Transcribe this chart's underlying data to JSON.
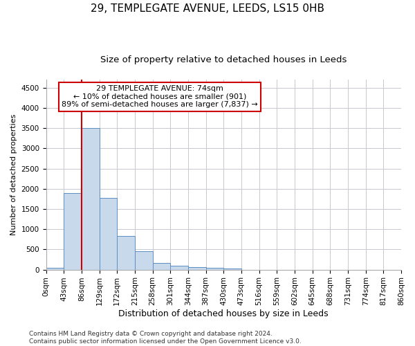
{
  "title1": "29, TEMPLEGATE AVENUE, LEEDS, LS15 0HB",
  "title2": "Size of property relative to detached houses in Leeds",
  "xlabel": "Distribution of detached houses by size in Leeds",
  "ylabel": "Number of detached properties",
  "bar_values": [
    40,
    1900,
    3500,
    1780,
    830,
    460,
    170,
    100,
    65,
    50,
    30,
    0,
    0,
    0,
    0,
    0,
    0,
    0,
    0,
    0
  ],
  "bar_labels": [
    "0sqm",
    "43sqm",
    "86sqm",
    "129sqm",
    "172sqm",
    "215sqm",
    "258sqm",
    "301sqm",
    "344sqm",
    "387sqm",
    "430sqm",
    "473sqm",
    "516sqm",
    "559sqm",
    "602sqm",
    "645sqm",
    "688sqm",
    "731sqm",
    "774sqm",
    "817sqm",
    "860sqm"
  ],
  "bar_color": "#c9d9ec",
  "bar_edge_color": "#5b8ec4",
  "grid_color": "#c8c8d0",
  "vline_x": 2,
  "vline_color": "#cc0000",
  "annotation_title": "29 TEMPLEGATE AVENUE: 74sqm",
  "annotation_line1": "← 10% of detached houses are smaller (901)",
  "annotation_line2": "89% of semi-detached houses are larger (7,837) →",
  "annotation_box_color": "#cc0000",
  "annotation_box_fill": "#ffffff",
  "ylim": [
    0,
    4700
  ],
  "yticks": [
    0,
    500,
    1000,
    1500,
    2000,
    2500,
    3000,
    3500,
    4000,
    4500
  ],
  "footer1": "Contains HM Land Registry data © Crown copyright and database right 2024.",
  "footer2": "Contains public sector information licensed under the Open Government Licence v3.0.",
  "title1_fontsize": 11,
  "title2_fontsize": 9.5,
  "xlabel_fontsize": 9,
  "ylabel_fontsize": 8,
  "tick_fontsize": 7.5,
  "footer_fontsize": 6.5,
  "annotation_fontsize": 8
}
